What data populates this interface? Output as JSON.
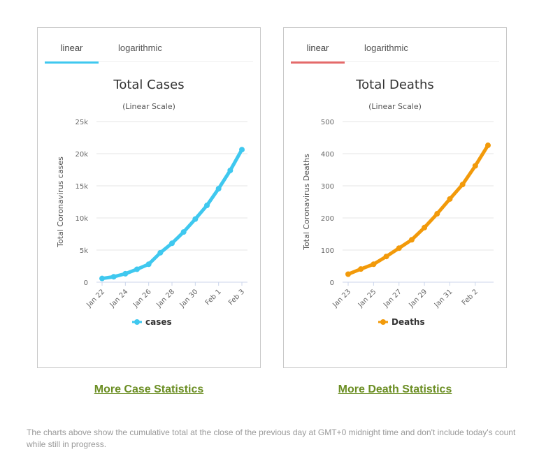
{
  "colors": {
    "cases": "#3fc8ef",
    "deaths": "#f29a0a",
    "deaths_tab": "#e46a6a",
    "link": "#6b8e23"
  },
  "chart_data": [
    {
      "type": "line",
      "tabs": [
        "linear",
        "logarithmic"
      ],
      "title": "Total Cases",
      "subtitle": "(Linear Scale)",
      "ylabel": "Total Coronavirus cases",
      "xlabel": "",
      "ylim": [
        0,
        25000
      ],
      "yticks": [
        0,
        5000,
        10000,
        15000,
        20000,
        25000
      ],
      "ytick_labels": [
        "0",
        "5k",
        "10k",
        "15k",
        "20k",
        "25k"
      ],
      "x": [
        "Jan 22",
        "Jan 23",
        "Jan 24",
        "Jan 25",
        "Jan 26",
        "Jan 27",
        "Jan 28",
        "Jan 29",
        "Jan 30",
        "Jan 31",
        "Feb 1",
        "Feb 2",
        "Feb 3"
      ],
      "xtick_labels": [
        "Jan 22",
        "Jan 24",
        "Jan 26",
        "Jan 28",
        "Jan 30",
        "Feb 1",
        "Feb 3"
      ],
      "series": [
        {
          "name": "cases",
          "values": [
            580,
            845,
            1317,
            2015,
            2800,
            4581,
            6058,
            7813,
            9823,
            11950,
            14553,
            17391,
            20630
          ]
        }
      ],
      "legend": "bottom-center"
    },
    {
      "type": "line",
      "tabs": [
        "linear",
        "logarithmic"
      ],
      "title": "Total Deaths",
      "subtitle": "(Linear Scale)",
      "ylabel": "Total Coronavirus Deaths",
      "xlabel": "",
      "ylim": [
        0,
        500
      ],
      "yticks": [
        0,
        100,
        200,
        300,
        400,
        500
      ],
      "ytick_labels": [
        "0",
        "100",
        "200",
        "300",
        "400",
        "500"
      ],
      "x": [
        "Jan 23",
        "Jan 24",
        "Jan 25",
        "Jan 26",
        "Jan 27",
        "Jan 28",
        "Jan 29",
        "Jan 30",
        "Jan 31",
        "Feb 1",
        "Feb 2",
        "Feb 3"
      ],
      "xtick_labels": [
        "Jan 23",
        "Jan 25",
        "Jan 27",
        "Jan 29",
        "Jan 31",
        "Feb 2"
      ],
      "series": [
        {
          "name": "Deaths",
          "values": [
            25,
            41,
            56,
            80,
            106,
            132,
            170,
            213,
            259,
            304,
            362,
            426
          ]
        }
      ],
      "legend": "bottom-center"
    }
  ],
  "links": {
    "cases": "More Case Statistics",
    "deaths": "More Death Statistics"
  },
  "footnote": "The charts above show the cumulative total at the close of the previous day at GMT+0 midnight time and don't include today's count while still in progress."
}
